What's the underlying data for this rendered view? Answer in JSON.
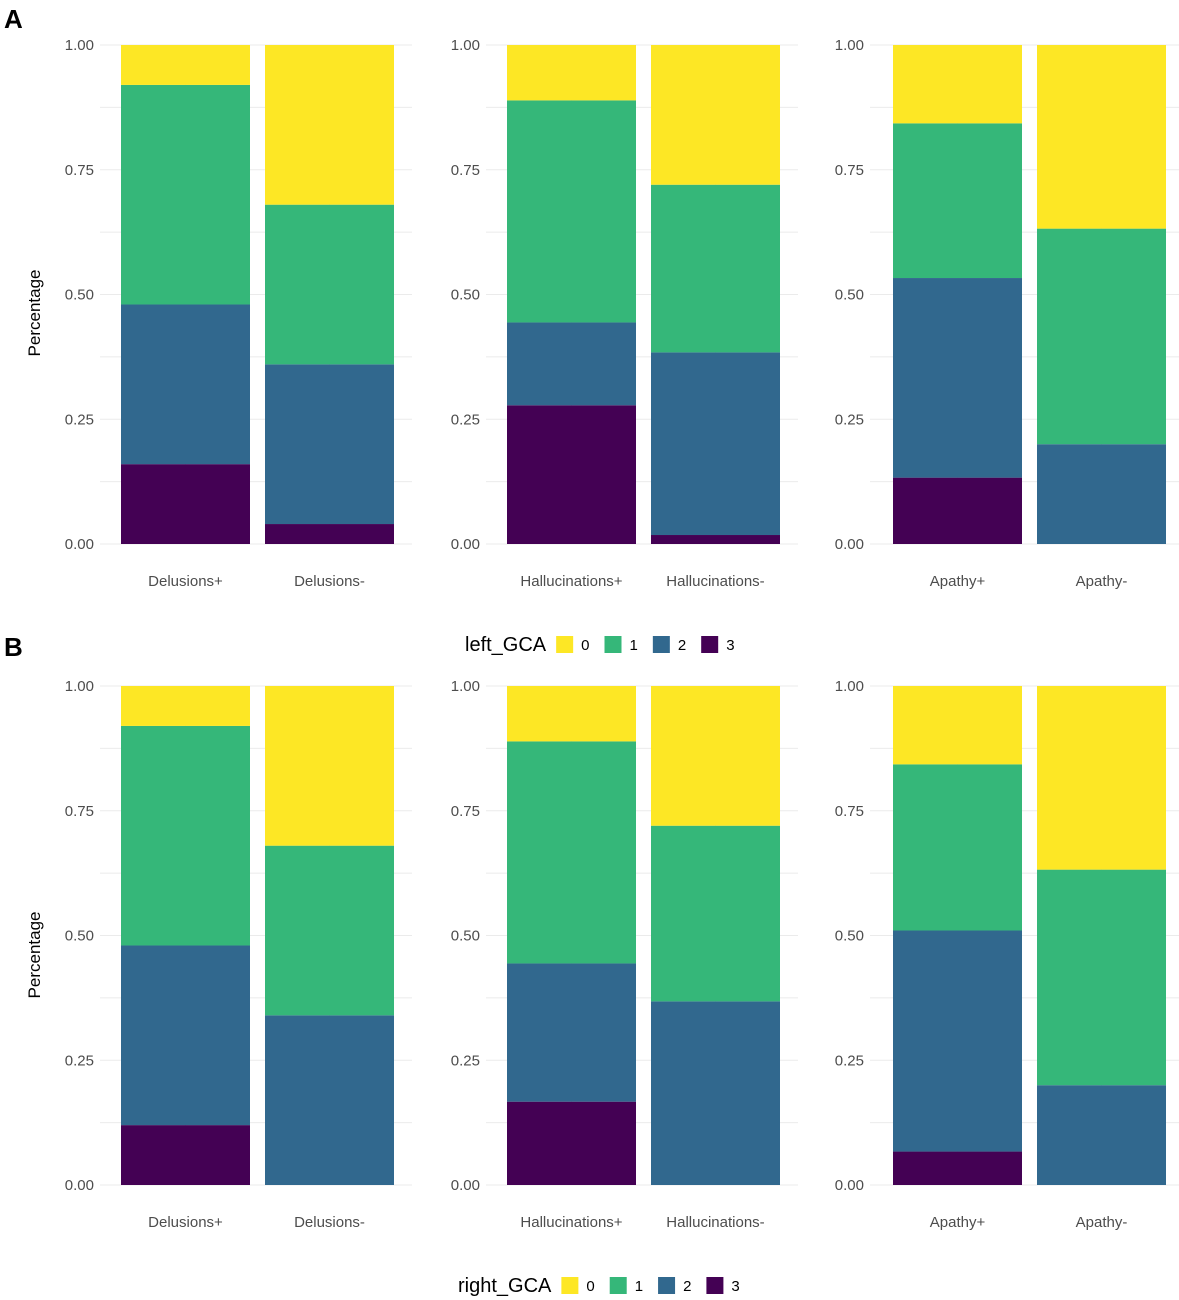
{
  "chart_data": [
    {
      "panel_label": "A",
      "type": "bar",
      "stacked": true,
      "ylabel": "Percentage",
      "ylim": [
        0,
        1
      ],
      "y_ticks": [
        "0.00",
        "0.25",
        "0.50",
        "0.75",
        "1.00"
      ],
      "legend": {
        "title": "left_GCA",
        "position": "bottom",
        "keys": [
          "0",
          "1",
          "2",
          "3"
        ]
      },
      "facets": [
        {
          "categories": [
            "Delusions+",
            "Delusions-"
          ],
          "series": [
            {
              "name": "3",
              "values": [
                0.16,
                0.04
              ]
            },
            {
              "name": "2",
              "values": [
                0.32,
                0.32
              ]
            },
            {
              "name": "1",
              "values": [
                0.44,
                0.32
              ]
            },
            {
              "name": "0",
              "values": [
                0.08,
                0.32
              ]
            }
          ]
        },
        {
          "categories": [
            "Hallucinations+",
            "Hallucinations-"
          ],
          "series": [
            {
              "name": "3",
              "values": [
                0.278,
                0.018
              ]
            },
            {
              "name": "2",
              "values": [
                0.166,
                0.366
              ]
            },
            {
              "name": "1",
              "values": [
                0.445,
                0.336
              ]
            },
            {
              "name": "0",
              "values": [
                0.111,
                0.28
              ]
            }
          ]
        },
        {
          "categories": [
            "Apathy+",
            "Apathy-"
          ],
          "series": [
            {
              "name": "3",
              "values": [
                0.133,
                0
              ]
            },
            {
              "name": "2",
              "values": [
                0.4,
                0.2
              ]
            },
            {
              "name": "1",
              "values": [
                0.31,
                0.432
              ]
            },
            {
              "name": "0",
              "values": [
                0.157,
                0.368
              ]
            }
          ]
        }
      ]
    },
    {
      "panel_label": "B",
      "type": "bar",
      "stacked": true,
      "ylabel": "Percentage",
      "ylim": [
        0,
        1
      ],
      "y_ticks": [
        "0.00",
        "0.25",
        "0.50",
        "0.75",
        "1.00"
      ],
      "legend": {
        "title": "right_GCA",
        "position": "bottom",
        "keys": [
          "0",
          "1",
          "2",
          "3"
        ]
      },
      "facets": [
        {
          "categories": [
            "Delusions+",
            "Delusions-"
          ],
          "series": [
            {
              "name": "3",
              "values": [
                0.12,
                0
              ]
            },
            {
              "name": "2",
              "values": [
                0.36,
                0.34
              ]
            },
            {
              "name": "1",
              "values": [
                0.44,
                0.34
              ]
            },
            {
              "name": "0",
              "values": [
                0.08,
                0.32
              ]
            }
          ]
        },
        {
          "categories": [
            "Hallucinations+",
            "Hallucinations-"
          ],
          "series": [
            {
              "name": "3",
              "values": [
                0.167,
                0
              ]
            },
            {
              "name": "2",
              "values": [
                0.277,
                0.368
              ]
            },
            {
              "name": "1",
              "values": [
                0.445,
                0.352
              ]
            },
            {
              "name": "0",
              "values": [
                0.111,
                0.28
              ]
            }
          ]
        },
        {
          "categories": [
            "Apathy+",
            "Apathy-"
          ],
          "series": [
            {
              "name": "3",
              "values": [
                0.067,
                0
              ]
            },
            {
              "name": "2",
              "values": [
                0.443,
                0.2
              ]
            },
            {
              "name": "1",
              "values": [
                0.333,
                0.432
              ]
            },
            {
              "name": "0",
              "values": [
                0.157,
                0.368
              ]
            }
          ]
        }
      ]
    }
  ],
  "colors": {
    "0": "#FDE725",
    "1": "#35B779",
    "2": "#31688E",
    "3": "#440154"
  }
}
